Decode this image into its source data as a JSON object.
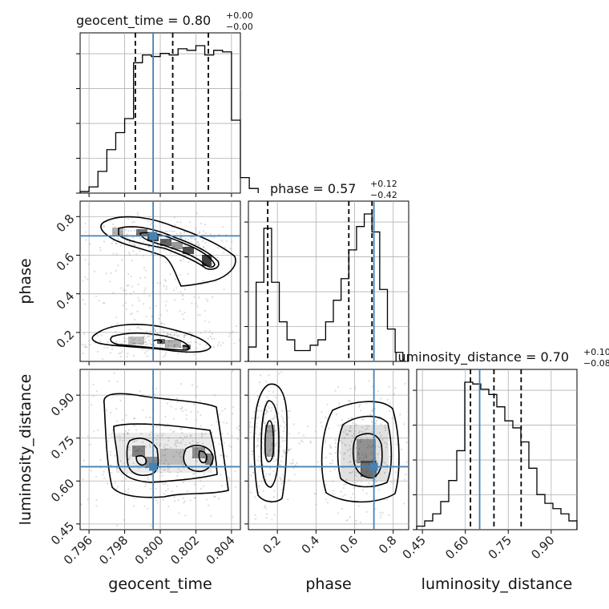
{
  "chart_data": {
    "type": "corner",
    "parameters": [
      "geocent_time",
      "phase",
      "luminosity_distance"
    ],
    "truth": {
      "geocent_time": 0.7996,
      "phase": 0.7,
      "luminosity_distance": 0.65
    },
    "truth_color": "#4682b4",
    "titles": [
      {
        "label": "geocent_time = 0.80",
        "plus": "+0.00",
        "minus": "−0.00"
      },
      {
        "label": "phase = 0.57",
        "plus": "+0.12",
        "minus": "−0.42"
      },
      {
        "label": "luminosity_distance = 0.70",
        "plus": "+0.10",
        "minus": "−0.08"
      }
    ],
    "axis_labels": {
      "x": [
        "geocent_time",
        "phase",
        "luminosity_distance"
      ],
      "y": [
        "phase",
        "luminosity_distance"
      ]
    },
    "ticks": {
      "geocent_time": [
        "0.796",
        "0.798",
        "0.800",
        "0.802",
        "0.804"
      ],
      "phase": [
        "0.2",
        "0.4",
        "0.6",
        "0.8"
      ],
      "luminosity_distance": [
        "0.45",
        "0.60",
        "0.75",
        "0.90"
      ]
    },
    "ranges": {
      "geocent_time": [
        0.7955,
        0.8045
      ],
      "phase": [
        0.05,
        0.88
      ],
      "luminosity_distance": [
        0.43,
        0.99
      ]
    },
    "histograms": {
      "geocent_time": {
        "edges_start": 0.7955,
        "bin_width": 0.0005,
        "counts": [
          1,
          4,
          14,
          28,
          39,
          48,
          84,
          89,
          88,
          90,
          89,
          93,
          92,
          95,
          89,
          92,
          91,
          47,
          10,
          3
        ],
        "quantiles": [
          0.7986,
          0.8007,
          0.8027
        ]
      },
      "phase": {
        "edges_start": 0.05,
        "bin_width": 0.04,
        "counts": [
          8,
          44,
          74,
          44,
          22,
          12,
          6,
          6,
          9,
          12,
          22,
          34,
          46,
          62,
          75,
          82,
          72,
          40,
          18,
          5
        ],
        "quantiles": [
          0.15,
          0.57,
          0.69
        ]
      },
      "luminosity_distance": {
        "edges_start": 0.43,
        "bin_width": 0.028,
        "counts": [
          2,
          5,
          9,
          16,
          28,
          45,
          84,
          83,
          80,
          77,
          70,
          62,
          58,
          50,
          35,
          20,
          15,
          12,
          9,
          5
        ],
        "quantiles": [
          0.618,
          0.7,
          0.795
        ]
      }
    },
    "title_separator": "",
    "grid": true
  }
}
